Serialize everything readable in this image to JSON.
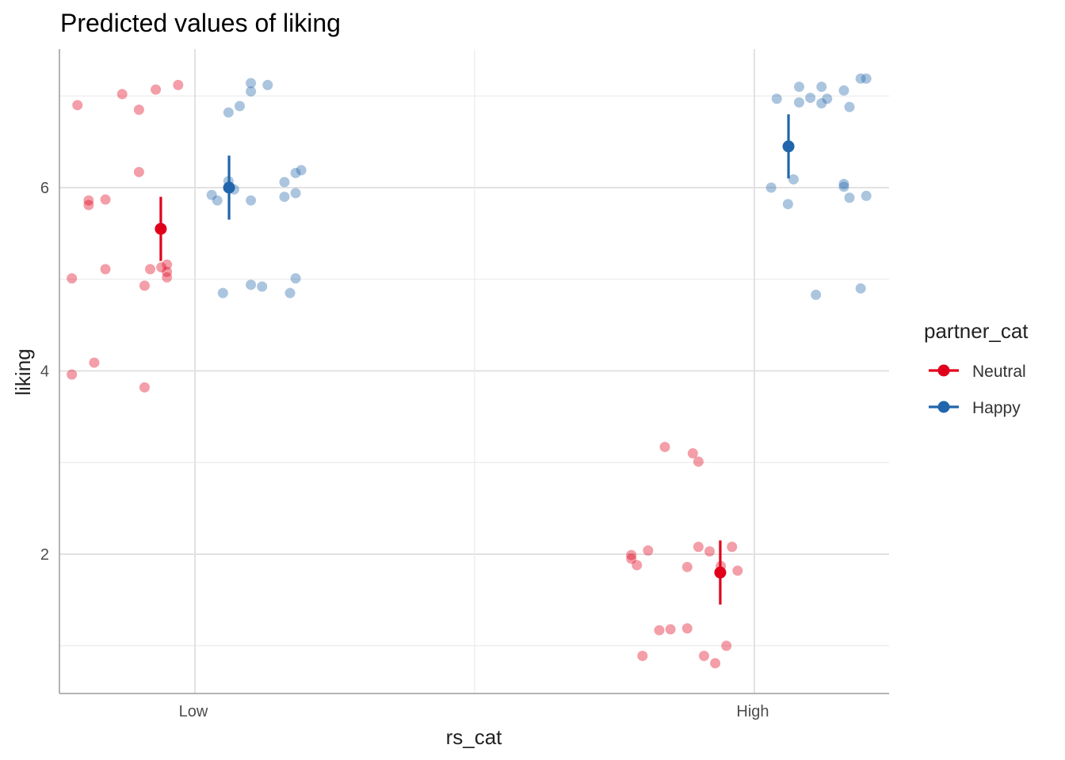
{
  "chart_data": {
    "type": "scatter",
    "title": "Predicted values of liking",
    "xlabel": "rs_cat",
    "ylabel": "liking",
    "categories": [
      "Low",
      "High"
    ],
    "y_ticks": [
      "2",
      "4",
      "6"
    ],
    "y_tick_values": [
      2,
      4,
      6
    ],
    "ylim": [
      0.5,
      7.5
    ],
    "grid": true,
    "legend": {
      "title": "partner_cat",
      "position": "right",
      "entries": [
        "Neutral",
        "Happy"
      ]
    },
    "series": [
      {
        "name": "Neutral",
        "color": "#e0001b",
        "estimates": [
          {
            "category": "Low",
            "value": 5.55,
            "ci": [
              5.2,
              5.9
            ]
          },
          {
            "category": "High",
            "value": 1.8,
            "ci": [
              1.45,
              2.15
            ]
          }
        ],
        "points": [
          {
            "category": "Low",
            "offset": -0.21,
            "y": 6.9
          },
          {
            "category": "Low",
            "offset": -0.13,
            "y": 7.02
          },
          {
            "category": "Low",
            "offset": -0.1,
            "y": 6.85
          },
          {
            "category": "Low",
            "offset": -0.07,
            "y": 7.07
          },
          {
            "category": "Low",
            "offset": -0.03,
            "y": 7.12
          },
          {
            "category": "Low",
            "offset": -0.1,
            "y": 6.17
          },
          {
            "category": "Low",
            "offset": -0.19,
            "y": 5.86
          },
          {
            "category": "Low",
            "offset": -0.16,
            "y": 5.87
          },
          {
            "category": "Low",
            "offset": -0.19,
            "y": 5.81
          },
          {
            "category": "Low",
            "offset": -0.22,
            "y": 5.01
          },
          {
            "category": "Low",
            "offset": -0.16,
            "y": 5.11
          },
          {
            "category": "Low",
            "offset": -0.08,
            "y": 5.11
          },
          {
            "category": "Low",
            "offset": -0.06,
            "y": 5.13
          },
          {
            "category": "Low",
            "offset": -0.05,
            "y": 5.16
          },
          {
            "category": "Low",
            "offset": -0.05,
            "y": 5.08
          },
          {
            "category": "Low",
            "offset": -0.05,
            "y": 5.02
          },
          {
            "category": "Low",
            "offset": -0.09,
            "y": 4.93
          },
          {
            "category": "Low",
            "offset": -0.18,
            "y": 4.09
          },
          {
            "category": "Low",
            "offset": -0.22,
            "y": 3.96
          },
          {
            "category": "Low",
            "offset": -0.09,
            "y": 3.82
          },
          {
            "category": "High",
            "offset": -0.16,
            "y": 3.17
          },
          {
            "category": "High",
            "offset": -0.11,
            "y": 3.1
          },
          {
            "category": "High",
            "offset": -0.1,
            "y": 3.01
          },
          {
            "category": "High",
            "offset": -0.22,
            "y": 1.99
          },
          {
            "category": "High",
            "offset": -0.22,
            "y": 1.95
          },
          {
            "category": "High",
            "offset": -0.19,
            "y": 2.04
          },
          {
            "category": "High",
            "offset": -0.21,
            "y": 1.88
          },
          {
            "category": "High",
            "offset": -0.1,
            "y": 2.08
          },
          {
            "category": "High",
            "offset": -0.08,
            "y": 2.03
          },
          {
            "category": "High",
            "offset": -0.04,
            "y": 2.08
          },
          {
            "category": "High",
            "offset": -0.06,
            "y": 1.87
          },
          {
            "category": "High",
            "offset": -0.03,
            "y": 1.82
          },
          {
            "category": "High",
            "offset": -0.12,
            "y": 1.86
          },
          {
            "category": "High",
            "offset": -0.17,
            "y": 1.17
          },
          {
            "category": "High",
            "offset": -0.15,
            "y": 1.18
          },
          {
            "category": "High",
            "offset": -0.12,
            "y": 1.19
          },
          {
            "category": "High",
            "offset": -0.2,
            "y": 0.89
          },
          {
            "category": "High",
            "offset": -0.09,
            "y": 0.89
          },
          {
            "category": "High",
            "offset": -0.07,
            "y": 0.81
          },
          {
            "category": "High",
            "offset": -0.05,
            "y": 1.0
          }
        ]
      },
      {
        "name": "Happy",
        "color": "#2166ac",
        "estimates": [
          {
            "category": "Low",
            "value": 6.0,
            "ci": [
              5.65,
              6.35
            ]
          },
          {
            "category": "High",
            "value": 6.45,
            "ci": [
              6.1,
              6.8
            ]
          }
        ],
        "points": [
          {
            "category": "Low",
            "offset": 0.1,
            "y": 7.14
          },
          {
            "category": "Low",
            "offset": 0.13,
            "y": 7.12
          },
          {
            "category": "Low",
            "offset": 0.1,
            "y": 7.05
          },
          {
            "category": "Low",
            "offset": 0.08,
            "y": 6.89
          },
          {
            "category": "Low",
            "offset": 0.06,
            "y": 6.82
          },
          {
            "category": "Low",
            "offset": 0.19,
            "y": 6.19
          },
          {
            "category": "Low",
            "offset": 0.18,
            "y": 6.16
          },
          {
            "category": "Low",
            "offset": 0.16,
            "y": 6.06
          },
          {
            "category": "Low",
            "offset": 0.06,
            "y": 6.07
          },
          {
            "category": "Low",
            "offset": 0.07,
            "y": 5.98
          },
          {
            "category": "Low",
            "offset": 0.03,
            "y": 5.92
          },
          {
            "category": "Low",
            "offset": 0.04,
            "y": 5.86
          },
          {
            "category": "Low",
            "offset": 0.1,
            "y": 5.86
          },
          {
            "category": "Low",
            "offset": 0.16,
            "y": 5.9
          },
          {
            "category": "Low",
            "offset": 0.18,
            "y": 5.94
          },
          {
            "category": "Low",
            "offset": 0.18,
            "y": 5.01
          },
          {
            "category": "Low",
            "offset": 0.1,
            "y": 4.94
          },
          {
            "category": "Low",
            "offset": 0.12,
            "y": 4.92
          },
          {
            "category": "Low",
            "offset": 0.05,
            "y": 4.85
          },
          {
            "category": "Low",
            "offset": 0.17,
            "y": 4.85
          },
          {
            "category": "High",
            "offset": 0.08,
            "y": 7.1
          },
          {
            "category": "High",
            "offset": 0.12,
            "y": 7.1
          },
          {
            "category": "High",
            "offset": 0.16,
            "y": 7.06
          },
          {
            "category": "High",
            "offset": 0.19,
            "y": 7.19
          },
          {
            "category": "High",
            "offset": 0.2,
            "y": 7.19
          },
          {
            "category": "High",
            "offset": 0.04,
            "y": 6.97
          },
          {
            "category": "High",
            "offset": 0.1,
            "y": 6.98
          },
          {
            "category": "High",
            "offset": 0.13,
            "y": 6.97
          },
          {
            "category": "High",
            "offset": 0.08,
            "y": 6.93
          },
          {
            "category": "High",
            "offset": 0.12,
            "y": 6.92
          },
          {
            "category": "High",
            "offset": 0.17,
            "y": 6.88
          },
          {
            "category": "High",
            "offset": 0.03,
            "y": 6.0
          },
          {
            "category": "High",
            "offset": 0.07,
            "y": 6.09
          },
          {
            "category": "High",
            "offset": 0.16,
            "y": 6.04
          },
          {
            "category": "High",
            "offset": 0.16,
            "y": 6.01
          },
          {
            "category": "High",
            "offset": 0.17,
            "y": 5.89
          },
          {
            "category": "High",
            "offset": 0.2,
            "y": 5.91
          },
          {
            "category": "High",
            "offset": 0.06,
            "y": 5.82
          },
          {
            "category": "High",
            "offset": 0.11,
            "y": 4.83
          },
          {
            "category": "High",
            "offset": 0.19,
            "y": 4.9
          }
        ]
      }
    ]
  }
}
